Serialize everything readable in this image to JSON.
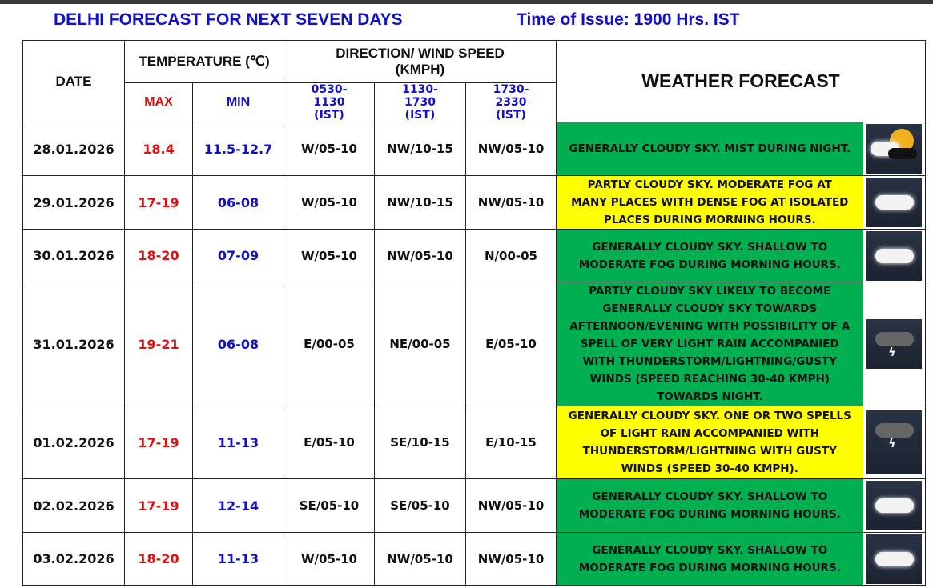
{
  "title": "DELHI FORECAST FOR NEXT SEVEN DAYS",
  "time_of_issue": "Time of Issue: 1900 Hrs. IST",
  "headers": {
    "date": "DATE",
    "temperature": "TEMPERATURE (℃)",
    "max": "MAX",
    "min": "MIN",
    "wind": "DIRECTION/ WIND SPEED (KMPH)",
    "slot1": "0530-1130 (IST)",
    "slot2": "1130-1730 (IST)",
    "slot3": "1730-2330 (IST)",
    "forecast": "WEATHER FORECAST"
  },
  "colors": {
    "green": "#00b050",
    "yellow": "#ffff00",
    "max": "#e01010",
    "min": "#1010c8"
  },
  "rows": [
    {
      "date": "28.01.2026",
      "max": "18.4",
      "min": "11.5-12.7",
      "w1": "W/05-10",
      "w2": "NW/10-15",
      "w3": "NW/05-10",
      "forecast": "GENERALLY CLOUDY SKY. MIST DURING NIGHT.",
      "color": "green",
      "icon": "partly-cloudy-sun-icon"
    },
    {
      "date": "29.01.2026",
      "max": "17-19",
      "min": "06-08",
      "w1": "W/05-10",
      "w2": "NW/10-15",
      "w3": "NW/05-10",
      "forecast": "PARTLY CLOUDY SKY. MODERATE FOG AT MANY PLACES WITH DENSE FOG AT ISOLATED PLACES DURING MORNING HOURS.",
      "color": "yellow",
      "icon": "fog-icon"
    },
    {
      "date": "30.01.2026",
      "max": "18-20",
      "min": "07-09",
      "w1": "W/05-10",
      "w2": "NW/05-10",
      "w3": "N/00-05",
      "forecast": "GENERALLY CLOUDY SKY. SHALLOW TO MODERATE FOG DURING MORNING HOURS.",
      "color": "green",
      "icon": "fog-icon"
    },
    {
      "date": "31.01.2026",
      "max": "19-21",
      "min": "06-08",
      "w1": "E/00-05",
      "w2": "NE/00-05",
      "w3": "E/05-10",
      "forecast": "PARTLY CLOUDY SKY LIKELY TO BECOME GENERALLY CLOUDY SKY TOWARDS AFTERNOON/EVENING WITH POSSIBILITY OF A SPELL OF VERY LIGHT RAIN ACCOMPANIED WITH THUNDERSTORM/LIGHTNING/GUSTY WINDS (SPEED REACHING 30-40 KMPH) TOWARDS NIGHT.",
      "color": "green",
      "icon": "thunderstorm-icon"
    },
    {
      "date": "01.02.2026",
      "max": "17-19",
      "min": "11-13",
      "w1": "E/05-10",
      "w2": "SE/10-15",
      "w3": "E/10-15",
      "forecast": "GENERALLY CLOUDY SKY. ONE OR TWO SPELLS OF LIGHT RAIN ACCOMPANIED WITH THUNDERSTORM/LIGHTNING WITH GUSTY WINDS (SPEED 30-40 KMPH).",
      "color": "yellow",
      "icon": "thunderstorm-icon"
    },
    {
      "date": "02.02.2026",
      "max": "17-19",
      "min": "12-14",
      "w1": "SE/05-10",
      "w2": "SE/05-10",
      "w3": "NW/05-10",
      "forecast": "GENERALLY CLOUDY SKY. SHALLOW TO MODERATE FOG DURING MORNING HOURS.",
      "color": "green",
      "icon": "fog-icon"
    },
    {
      "date": "03.02.2026",
      "max": "18-20",
      "min": "11-13",
      "w1": "W/05-10",
      "w2": "NW/05-10",
      "w3": "NW/05-10",
      "forecast": "GENERALLY CLOUDY SKY. SHALLOW TO MODERATE FOG DURING MORNING HOURS.",
      "color": "green",
      "icon": "fog-icon"
    }
  ]
}
